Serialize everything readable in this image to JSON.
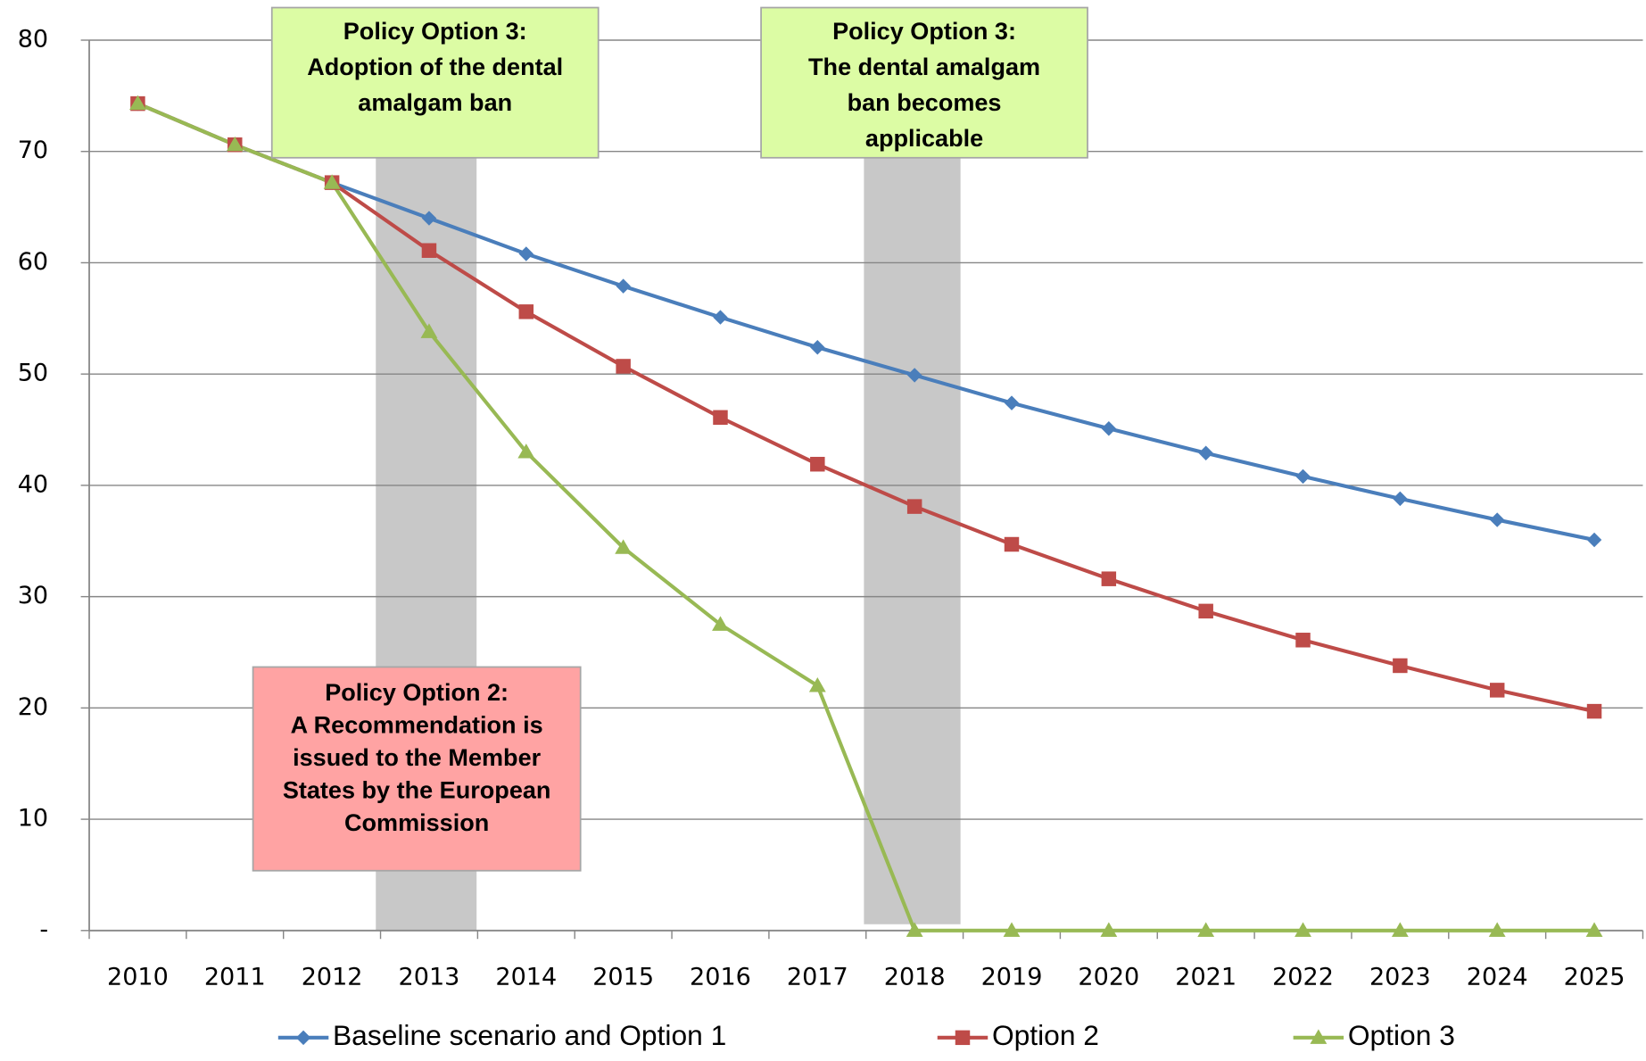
{
  "chart_data": {
    "type": "line",
    "categories": [
      "2010",
      "2011",
      "2012",
      "2013",
      "2014",
      "2015",
      "2016",
      "2017",
      "2018",
      "2019",
      "2020",
      "2021",
      "2022",
      "2023",
      "2024",
      "2025"
    ],
    "series": [
      {
        "name": "Baseline scenario and Option 1",
        "color": "#4a7ebb",
        "marker": "diamond",
        "values": [
          74.3,
          70.6,
          67.2,
          64.0,
          60.8,
          57.9,
          55.1,
          52.4,
          49.9,
          47.4,
          45.1,
          42.9,
          40.8,
          38.8,
          36.9,
          35.1
        ]
      },
      {
        "name": "Option 2",
        "color": "#be4b48",
        "marker": "square",
        "values": [
          74.3,
          70.6,
          67.2,
          61.1,
          55.6,
          50.7,
          46.1,
          41.9,
          38.1,
          34.7,
          31.6,
          28.7,
          26.1,
          23.8,
          21.6,
          19.7
        ]
      },
      {
        "name": "Option 3",
        "color": "#98b954",
        "marker": "triangle",
        "values": [
          74.3,
          70.6,
          67.2,
          53.8,
          43.0,
          34.4,
          27.5,
          22.0,
          0,
          0,
          0,
          0,
          0,
          0,
          0,
          0
        ]
      }
    ],
    "ylim": [
      0,
      80
    ],
    "yticks": [
      {
        "value": 0,
        "label": "-"
      },
      10,
      20,
      30,
      40,
      50,
      60,
      70,
      80
    ],
    "grid": true,
    "legend": "bottom",
    "annotations": [
      {
        "lines": [
          "Policy Option  3:",
          "Adoption of the dental",
          "amalgam ban"
        ],
        "color": "#dcfca4"
      },
      {
        "lines": [
          "Policy Option  3:",
          "The dental amalgam",
          "ban becomes",
          "applicable"
        ],
        "color": "#dcfca4"
      },
      {
        "lines": [
          "Policy Option 2:",
          "A Recommendation is",
          "issued to the Member",
          "States by the European",
          "Commission"
        ],
        "color": "#ffa3a3"
      }
    ]
  }
}
